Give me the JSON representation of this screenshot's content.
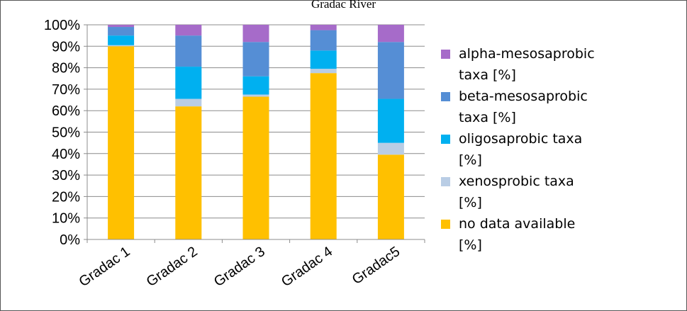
{
  "chart_data": {
    "type": "bar",
    "stacked": true,
    "percent": true,
    "title": "Gradac River",
    "categories": [
      "Gradac 1",
      "Gradac 2",
      "Gradac 3",
      "Gradac 4",
      "Gradac5"
    ],
    "y_ticks": [
      "0%",
      "10%",
      "20%",
      "30%",
      "40%",
      "50%",
      "60%",
      "70%",
      "80%",
      "90%",
      "100%"
    ],
    "ylim": [
      0,
      100
    ],
    "grid": true,
    "legend_position": "right",
    "series": [
      {
        "name": "no data available [%]",
        "legend_lines": [
          "no data available",
          "[%]"
        ],
        "color": "#FFC000",
        "values": [
          90,
          62,
          66.5,
          77.5,
          39.5
        ]
      },
      {
        "name": "xenosprobic taxa [%]",
        "legend_lines": [
          "xenosprobic taxa",
          "[%]"
        ],
        "color": "#B9CDE5",
        "values": [
          0.5,
          3.5,
          1,
          2,
          5.5
        ]
      },
      {
        "name": "oligosaprobic taxa [%]",
        "legend_lines": [
          "oligosaprobic taxa",
          "[%]"
        ],
        "color": "#00B0F0",
        "values": [
          4.5,
          15,
          8.5,
          8.5,
          20.5
        ]
      },
      {
        "name": "beta-mesosaprobic taxa [%]",
        "legend_lines": [
          "beta-mesosaprobic",
          "taxa [%]"
        ],
        "color": "#558ED5",
        "values": [
          4,
          14.5,
          16,
          9.5,
          26.5
        ]
      },
      {
        "name": "alpha-mesosaprobic taxa [%]",
        "legend_lines": [
          "alpha-mesosaprobic",
          "taxa [%]"
        ],
        "color": "#A66BC9",
        "values": [
          1,
          5,
          8,
          2.5,
          8
        ]
      }
    ]
  }
}
